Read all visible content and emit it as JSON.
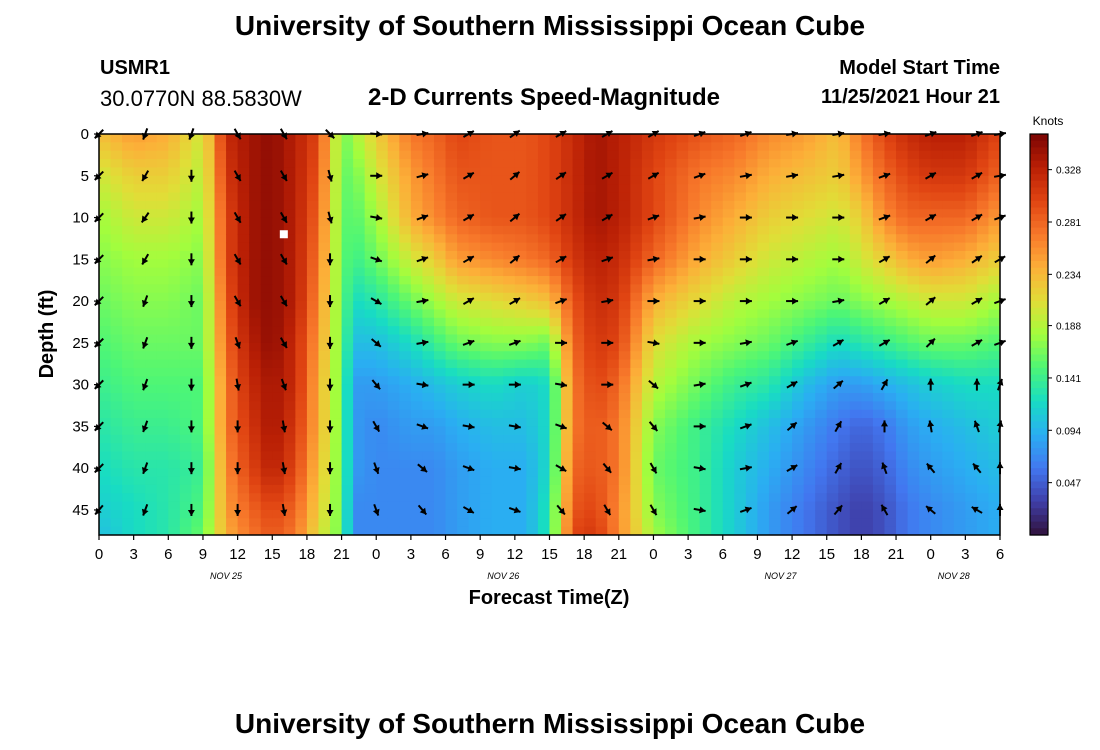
{
  "header": {
    "title": "University of Southern Mississippi Ocean Cube",
    "station_id": "USMR1",
    "coords": "30.0770N  88.5830W",
    "plot_title": "2-D Currents Speed-Magnitude",
    "start_label": "Model Start Time",
    "start_value": "11/25/2021 Hour 21"
  },
  "footer": {
    "title": "University of Southern Mississippi Ocean Cube"
  },
  "colors": {
    "colormap": [
      "#30123b",
      "#3f3ea8",
      "#4277f0",
      "#2aaef2",
      "#18dcc3",
      "#4df676",
      "#a3fd3d",
      "#e1dd37",
      "#fcaf38",
      "#f7772a",
      "#e04412",
      "#b91f05",
      "#7a0403"
    ],
    "arrow": "#000000",
    "marker": "#ffffff"
  },
  "chart_data": {
    "type": "heatmap",
    "title": "2-D Currents Speed-Magnitude",
    "xlabel": "Forecast Time(Z)",
    "ylabel": "Depth (ft)",
    "colorbar_label": "Knots",
    "colorbar_ticks": [
      "0.328",
      "0.281",
      "0.234",
      "0.188",
      "0.141",
      "0.094",
      "0.047"
    ],
    "colorbar_tick_values": [
      0.328,
      0.281,
      0.234,
      0.188,
      0.141,
      0.094,
      0.047
    ],
    "colorbar_range": [
      0.0,
      0.36
    ],
    "xlim_hours": [
      0,
      78
    ],
    "ylim_ft": [
      0,
      48
    ],
    "y_ticks": [
      0,
      5,
      10,
      15,
      20,
      25,
      30,
      35,
      40,
      45
    ],
    "y_tick_labels": [
      "0",
      "5",
      "10",
      "15",
      "20",
      "25",
      "30",
      "35",
      "40",
      "45"
    ],
    "x_ticks_hours": [
      0,
      3,
      6,
      9,
      12,
      15,
      18,
      21,
      24,
      27,
      30,
      33,
      36,
      39,
      42,
      45,
      48,
      51,
      54,
      57,
      60,
      63,
      66,
      69,
      72,
      75,
      78
    ],
    "x_tick_labels": [
      "0",
      "3",
      "6",
      "9",
      "12",
      "15",
      "18",
      "21",
      "0",
      "3",
      "6",
      "9",
      "12",
      "15",
      "18",
      "21",
      "0",
      "3",
      "6",
      "9",
      "12",
      "15",
      "18",
      "21",
      "0",
      "3",
      "6"
    ],
    "date_labels": [
      {
        "text": "NOV 25",
        "hour": 11
      },
      {
        "text": "NOV 26",
        "hour": 35
      },
      {
        "text": "NOV 27",
        "hour": 59
      },
      {
        "text": "NOV 28",
        "hour": 74
      }
    ],
    "depths_ft": [
      0,
      5,
      10,
      15,
      20,
      25,
      30,
      35,
      40,
      45,
      48
    ],
    "times_hours": [
      0,
      3,
      6,
      9,
      11,
      13,
      15,
      17,
      19,
      21,
      22,
      24,
      27,
      29,
      31,
      34,
      37,
      39,
      41,
      43,
      45,
      48,
      52,
      55,
      58,
      61,
      64,
      66,
      68,
      70,
      72,
      75,
      78
    ],
    "speed_knots": [
      [
        0.23,
        0.25,
        0.24,
        0.2,
        0.32,
        0.34,
        0.35,
        0.33,
        0.3,
        0.16,
        0.18,
        0.22,
        0.27,
        0.28,
        0.3,
        0.29,
        0.29,
        0.3,
        0.32,
        0.34,
        0.33,
        0.31,
        0.29,
        0.28,
        0.26,
        0.25,
        0.23,
        0.27,
        0.3,
        0.32,
        0.33,
        0.33,
        0.3
      ],
      [
        0.2,
        0.22,
        0.22,
        0.19,
        0.31,
        0.34,
        0.35,
        0.33,
        0.29,
        0.16,
        0.16,
        0.2,
        0.25,
        0.27,
        0.29,
        0.29,
        0.29,
        0.3,
        0.32,
        0.34,
        0.33,
        0.3,
        0.27,
        0.26,
        0.24,
        0.23,
        0.22,
        0.25,
        0.28,
        0.3,
        0.31,
        0.31,
        0.28
      ],
      [
        0.18,
        0.2,
        0.2,
        0.18,
        0.3,
        0.34,
        0.35,
        0.33,
        0.28,
        0.16,
        0.15,
        0.18,
        0.24,
        0.26,
        0.28,
        0.29,
        0.29,
        0.3,
        0.32,
        0.34,
        0.33,
        0.3,
        0.26,
        0.24,
        0.22,
        0.21,
        0.2,
        0.22,
        0.26,
        0.28,
        0.28,
        0.28,
        0.25
      ],
      [
        0.17,
        0.18,
        0.18,
        0.17,
        0.3,
        0.34,
        0.35,
        0.33,
        0.27,
        0.16,
        0.14,
        0.16,
        0.2,
        0.22,
        0.25,
        0.26,
        0.27,
        0.28,
        0.31,
        0.33,
        0.32,
        0.28,
        0.24,
        0.22,
        0.2,
        0.19,
        0.18,
        0.2,
        0.22,
        0.24,
        0.25,
        0.24,
        0.22
      ],
      [
        0.16,
        0.17,
        0.17,
        0.16,
        0.29,
        0.34,
        0.35,
        0.33,
        0.26,
        0.16,
        0.12,
        0.13,
        0.16,
        0.18,
        0.2,
        0.21,
        0.22,
        0.23,
        0.29,
        0.32,
        0.31,
        0.24,
        0.21,
        0.19,
        0.18,
        0.17,
        0.16,
        0.17,
        0.18,
        0.19,
        0.2,
        0.2,
        0.18
      ],
      [
        0.15,
        0.16,
        0.16,
        0.16,
        0.28,
        0.33,
        0.35,
        0.32,
        0.25,
        0.16,
        0.1,
        0.1,
        0.12,
        0.14,
        0.16,
        0.17,
        0.17,
        0.16,
        0.28,
        0.31,
        0.3,
        0.21,
        0.18,
        0.17,
        0.16,
        0.14,
        0.12,
        0.13,
        0.14,
        0.15,
        0.16,
        0.16,
        0.15
      ],
      [
        0.14,
        0.15,
        0.15,
        0.15,
        0.27,
        0.32,
        0.34,
        0.32,
        0.24,
        0.16,
        0.08,
        0.08,
        0.09,
        0.1,
        0.11,
        0.12,
        0.11,
        0.12,
        0.27,
        0.3,
        0.28,
        0.19,
        0.16,
        0.14,
        0.13,
        0.1,
        0.08,
        0.08,
        0.09,
        0.1,
        0.11,
        0.12,
        0.12
      ],
      [
        0.13,
        0.14,
        0.14,
        0.15,
        0.27,
        0.31,
        0.34,
        0.31,
        0.24,
        0.16,
        0.08,
        0.07,
        0.08,
        0.08,
        0.09,
        0.1,
        0.1,
        0.12,
        0.27,
        0.29,
        0.27,
        0.17,
        0.14,
        0.12,
        0.1,
        0.08,
        0.06,
        0.05,
        0.06,
        0.08,
        0.09,
        0.1,
        0.11
      ],
      [
        0.12,
        0.13,
        0.13,
        0.14,
        0.26,
        0.3,
        0.33,
        0.3,
        0.23,
        0.16,
        0.08,
        0.07,
        0.07,
        0.07,
        0.08,
        0.09,
        0.09,
        0.12,
        0.28,
        0.29,
        0.27,
        0.16,
        0.14,
        0.11,
        0.09,
        0.07,
        0.05,
        0.04,
        0.05,
        0.07,
        0.08,
        0.09,
        0.1
      ],
      [
        0.11,
        0.12,
        0.13,
        0.15,
        0.25,
        0.28,
        0.3,
        0.28,
        0.22,
        0.16,
        0.07,
        0.07,
        0.07,
        0.07,
        0.08,
        0.09,
        0.09,
        0.13,
        0.29,
        0.3,
        0.26,
        0.17,
        0.14,
        0.11,
        0.08,
        0.06,
        0.04,
        0.03,
        0.04,
        0.06,
        0.07,
        0.08,
        0.09
      ],
      [
        0.1,
        0.12,
        0.13,
        0.16,
        0.24,
        0.27,
        0.29,
        0.27,
        0.21,
        0.16,
        0.07,
        0.07,
        0.07,
        0.07,
        0.08,
        0.09,
        0.09,
        0.13,
        0.3,
        0.31,
        0.26,
        0.18,
        0.14,
        0.11,
        0.08,
        0.06,
        0.04,
        0.03,
        0.04,
        0.06,
        0.07,
        0.08,
        0.09
      ]
    ],
    "vector_depths_ft": [
      0,
      5,
      10,
      15,
      20,
      25,
      30,
      35,
      40,
      45
    ],
    "vector_times_hours": [
      0,
      4,
      8,
      12,
      16,
      20,
      24,
      28,
      32,
      36,
      40,
      44,
      48,
      52,
      56,
      60,
      64,
      68,
      72,
      76,
      78
    ],
    "vector_direction_deg": [
      [
        225,
        200,
        200,
        150,
        150,
        135,
        95,
        80,
        60,
        55,
        60,
        60,
        60,
        70,
        70,
        80,
        80,
        80,
        70,
        70,
        80
      ],
      [
        225,
        210,
        180,
        150,
        150,
        165,
        90,
        75,
        60,
        50,
        55,
        60,
        60,
        70,
        80,
        80,
        80,
        70,
        60,
        60,
        80
      ],
      [
        225,
        215,
        180,
        150,
        150,
        165,
        100,
        70,
        60,
        50,
        55,
        60,
        70,
        80,
        90,
        90,
        90,
        70,
        60,
        60,
        70
      ],
      [
        225,
        210,
        180,
        150,
        150,
        180,
        110,
        70,
        60,
        50,
        60,
        70,
        80,
        90,
        90,
        90,
        90,
        60,
        50,
        55,
        60
      ],
      [
        225,
        200,
        180,
        150,
        150,
        180,
        120,
        80,
        60,
        60,
        70,
        80,
        90,
        90,
        90,
        90,
        80,
        60,
        50,
        60,
        70
      ],
      [
        225,
        200,
        180,
        160,
        150,
        180,
        130,
        80,
        70,
        70,
        90,
        90,
        100,
        90,
        80,
        70,
        60,
        60,
        45,
        60,
        70
      ],
      [
        225,
        200,
        180,
        170,
        160,
        180,
        140,
        100,
        90,
        90,
        100,
        90,
        130,
        80,
        70,
        60,
        50,
        30,
        0,
        0,
        20
      ],
      [
        225,
        200,
        180,
        180,
        170,
        180,
        150,
        110,
        100,
        100,
        110,
        130,
        140,
        90,
        70,
        50,
        30,
        0,
        350,
        340,
        10
      ],
      [
        225,
        200,
        180,
        180,
        170,
        180,
        160,
        130,
        110,
        100,
        120,
        140,
        150,
        100,
        80,
        60,
        30,
        340,
        320,
        320,
        0
      ],
      [
        220,
        200,
        180,
        180,
        170,
        180,
        160,
        140,
        120,
        110,
        140,
        150,
        150,
        100,
        70,
        50,
        40,
        330,
        310,
        300,
        0
      ]
    ],
    "marker": {
      "hour": 16,
      "depth_ft": 12
    }
  }
}
